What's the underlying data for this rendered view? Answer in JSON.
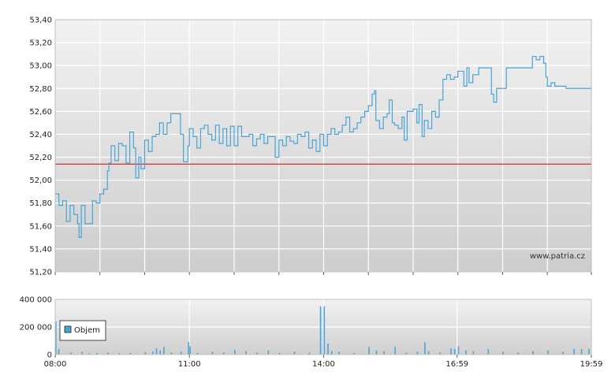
{
  "chart_data": [
    {
      "type": "line",
      "title": "",
      "xlabel": "",
      "ylabel": "",
      "ylim": [
        51.2,
        53.4
      ],
      "y_ticks": [
        "51,20",
        "51,40",
        "51,60",
        "51,80",
        "52,00",
        "52,20",
        "52,40",
        "52,60",
        "52,80",
        "53,00",
        "53,20",
        "53,40"
      ],
      "x_ticks": [
        "08:00",
        "11:00",
        "14:00",
        "16:59",
        "19:59"
      ],
      "grid": true,
      "reference_line": {
        "value": 52.14,
        "color": "#cc0000"
      },
      "series": [
        {
          "color": "#4aa3d6",
          "points": [
            [
              "08:00",
              51.88
            ],
            [
              "08:05",
              51.78
            ],
            [
              "08:10",
              51.82
            ],
            [
              "08:15",
              51.64
            ],
            [
              "08:20",
              51.78
            ],
            [
              "08:25",
              51.7
            ],
            [
              "08:30",
              51.62
            ],
            [
              "08:32",
              51.5
            ],
            [
              "08:35",
              51.78
            ],
            [
              "08:40",
              51.62
            ],
            [
              "08:45",
              51.62
            ],
            [
              "08:50",
              51.82
            ],
            [
              "08:55",
              51.8
            ],
            [
              "09:00",
              51.88
            ],
            [
              "09:05",
              51.92
            ],
            [
              "09:10",
              52.08
            ],
            [
              "09:12",
              52.15
            ],
            [
              "09:15",
              52.3
            ],
            [
              "09:20",
              52.17
            ],
            [
              "09:25",
              52.32
            ],
            [
              "09:30",
              52.3
            ],
            [
              "09:35",
              52.15
            ],
            [
              "09:40",
              52.42
            ],
            [
              "09:45",
              52.28
            ],
            [
              "09:48",
              52.02
            ],
            [
              "09:52",
              52.2
            ],
            [
              "09:55",
              52.1
            ],
            [
              "10:00",
              52.35
            ],
            [
              "10:05",
              52.25
            ],
            [
              "10:10",
              52.38
            ],
            [
              "10:15",
              52.4
            ],
            [
              "10:20",
              52.5
            ],
            [
              "10:25",
              52.4
            ],
            [
              "10:30",
              52.5
            ],
            [
              "10:35",
              52.58
            ],
            [
              "10:45",
              52.58
            ],
            [
              "10:48",
              52.4
            ],
            [
              "10:52",
              52.16
            ],
            [
              "10:58",
              52.3
            ],
            [
              "11:00",
              52.45
            ],
            [
              "11:05",
              52.38
            ],
            [
              "11:10",
              52.28
            ],
            [
              "11:15",
              52.45
            ],
            [
              "11:20",
              52.48
            ],
            [
              "11:25",
              52.4
            ],
            [
              "11:30",
              52.35
            ],
            [
              "11:35",
              52.48
            ],
            [
              "11:40",
              52.32
            ],
            [
              "11:45",
              52.45
            ],
            [
              "11:50",
              52.3
            ],
            [
              "11:55",
              52.47
            ],
            [
              "12:00",
              52.3
            ],
            [
              "12:05",
              52.47
            ],
            [
              "12:10",
              52.38
            ],
            [
              "12:20",
              52.4
            ],
            [
              "12:25",
              52.3
            ],
            [
              "12:30",
              52.36
            ],
            [
              "12:35",
              52.4
            ],
            [
              "12:40",
              52.32
            ],
            [
              "12:45",
              52.38
            ],
            [
              "12:50",
              52.38
            ],
            [
              "12:55",
              52.2
            ],
            [
              "13:00",
              52.35
            ],
            [
              "13:05",
              52.3
            ],
            [
              "13:10",
              52.38
            ],
            [
              "13:15",
              52.34
            ],
            [
              "13:20",
              52.32
            ],
            [
              "13:25",
              52.4
            ],
            [
              "13:30",
              52.38
            ],
            [
              "13:35",
              52.42
            ],
            [
              "13:40",
              52.28
            ],
            [
              "13:45",
              52.35
            ],
            [
              "13:50",
              52.25
            ],
            [
              "13:55",
              52.4
            ],
            [
              "14:00",
              52.3
            ],
            [
              "14:05",
              52.4
            ],
            [
              "14:10",
              52.45
            ],
            [
              "14:15",
              52.4
            ],
            [
              "14:20",
              52.42
            ],
            [
              "14:25",
              52.48
            ],
            [
              "14:30",
              52.55
            ],
            [
              "14:35",
              52.42
            ],
            [
              "14:40",
              52.45
            ],
            [
              "14:45",
              52.5
            ],
            [
              "14:50",
              52.55
            ],
            [
              "14:55",
              52.6
            ],
            [
              "15:00",
              52.65
            ],
            [
              "15:05",
              52.75
            ],
            [
              "15:08",
              52.78
            ],
            [
              "15:10",
              52.52
            ],
            [
              "15:15",
              52.45
            ],
            [
              "15:20",
              52.55
            ],
            [
              "15:25",
              52.58
            ],
            [
              "15:28",
              52.7
            ],
            [
              "15:32",
              52.5
            ],
            [
              "15:35",
              52.48
            ],
            [
              "15:40",
              52.45
            ],
            [
              "15:45",
              52.55
            ],
            [
              "15:48",
              52.35
            ],
            [
              "15:52",
              52.6
            ],
            [
              "16:00",
              52.62
            ],
            [
              "16:05",
              52.5
            ],
            [
              "16:08",
              52.66
            ],
            [
              "16:12",
              52.38
            ],
            [
              "16:15",
              52.52
            ],
            [
              "16:20",
              52.45
            ],
            [
              "16:25",
              52.6
            ],
            [
              "16:30",
              52.55
            ],
            [
              "16:35",
              52.7
            ],
            [
              "16:40",
              52.88
            ],
            [
              "16:45",
              52.92
            ],
            [
              "16:50",
              52.88
            ],
            [
              "16:55",
              52.9
            ],
            [
              "17:00",
              52.95
            ],
            [
              "17:05",
              52.95
            ],
            [
              "17:08",
              52.82
            ],
            [
              "17:12",
              52.98
            ],
            [
              "17:15",
              52.85
            ],
            [
              "17:20",
              52.92
            ],
            [
              "17:25",
              52.92
            ],
            [
              "17:28",
              52.98
            ],
            [
              "17:35",
              52.98
            ],
            [
              "17:40",
              52.98
            ],
            [
              "17:45",
              52.75
            ],
            [
              "17:48",
              52.68
            ],
            [
              "17:52",
              52.8
            ],
            [
              "18:00",
              52.8
            ],
            [
              "18:05",
              52.98
            ],
            [
              "18:20",
              52.98
            ],
            [
              "18:35",
              52.98
            ],
            [
              "18:40",
              53.08
            ],
            [
              "18:45",
              53.05
            ],
            [
              "18:50",
              53.08
            ],
            [
              "18:55",
              53.02
            ],
            [
              "18:58",
              52.9
            ],
            [
              "19:00",
              52.82
            ],
            [
              "19:05",
              52.85
            ],
            [
              "19:10",
              52.82
            ],
            [
              "19:20",
              52.82
            ],
            [
              "19:25",
              52.8
            ],
            [
              "19:59",
              52.8
            ]
          ]
        }
      ],
      "annotation": "www.patria.cz"
    },
    {
      "type": "bar",
      "title": "",
      "ylim": [
        0,
        400000
      ],
      "y_ticks": [
        "0",
        "200 000",
        "400 000"
      ],
      "x_ticks": [
        "08:00",
        "11:00",
        "14:00",
        "16:59",
        "19:59"
      ],
      "grid": true,
      "legend": {
        "placement": "top-left",
        "entries": [
          "Objem"
        ]
      },
      "series": [
        {
          "name": "Objem",
          "color": "#4aa3d6",
          "values": [
            [
              "08:00",
              240000
            ],
            [
              "08:04",
              40000
            ],
            [
              "08:20",
              15000
            ],
            [
              "08:35",
              20000
            ],
            [
              "08:45",
              10000
            ],
            [
              "08:55",
              12000
            ],
            [
              "09:10",
              15000
            ],
            [
              "09:25",
              10000
            ],
            [
              "09:40",
              12000
            ],
            [
              "10:00",
              18000
            ],
            [
              "10:10",
              22000
            ],
            [
              "10:15",
              45000
            ],
            [
              "10:20",
              30000
            ],
            [
              "10:25",
              55000
            ],
            [
              "10:35",
              15000
            ],
            [
              "10:48",
              20000
            ],
            [
              "10:58",
              90000
            ],
            [
              "11:00",
              60000
            ],
            [
              "11:10",
              12000
            ],
            [
              "11:30",
              20000
            ],
            [
              "11:45",
              15000
            ],
            [
              "12:00",
              35000
            ],
            [
              "12:15",
              25000
            ],
            [
              "12:30",
              15000
            ],
            [
              "12:45",
              30000
            ],
            [
              "13:00",
              12000
            ],
            [
              "13:20",
              20000
            ],
            [
              "13:40",
              15000
            ],
            [
              "13:55",
              350000
            ],
            [
              "14:00",
              350000
            ],
            [
              "14:05",
              80000
            ],
            [
              "14:10",
              25000
            ],
            [
              "14:20",
              20000
            ],
            [
              "14:40",
              12000
            ],
            [
              "15:00",
              55000
            ],
            [
              "15:10",
              30000
            ],
            [
              "15:20",
              25000
            ],
            [
              "15:35",
              55000
            ],
            [
              "15:50",
              15000
            ],
            [
              "16:05",
              20000
            ],
            [
              "16:15",
              90000
            ],
            [
              "16:20",
              25000
            ],
            [
              "16:35",
              15000
            ],
            [
              "16:50",
              45000
            ],
            [
              "16:55",
              40000
            ],
            [
              "17:00",
              60000
            ],
            [
              "17:10",
              30000
            ],
            [
              "17:20",
              25000
            ],
            [
              "17:40",
              40000
            ],
            [
              "18:00",
              20000
            ],
            [
              "18:20",
              15000
            ],
            [
              "18:40",
              25000
            ],
            [
              "19:00",
              30000
            ],
            [
              "19:20",
              20000
            ],
            [
              "19:35",
              40000
            ],
            [
              "19:45",
              40000
            ],
            [
              "19:55",
              40000
            ]
          ]
        }
      ]
    }
  ]
}
